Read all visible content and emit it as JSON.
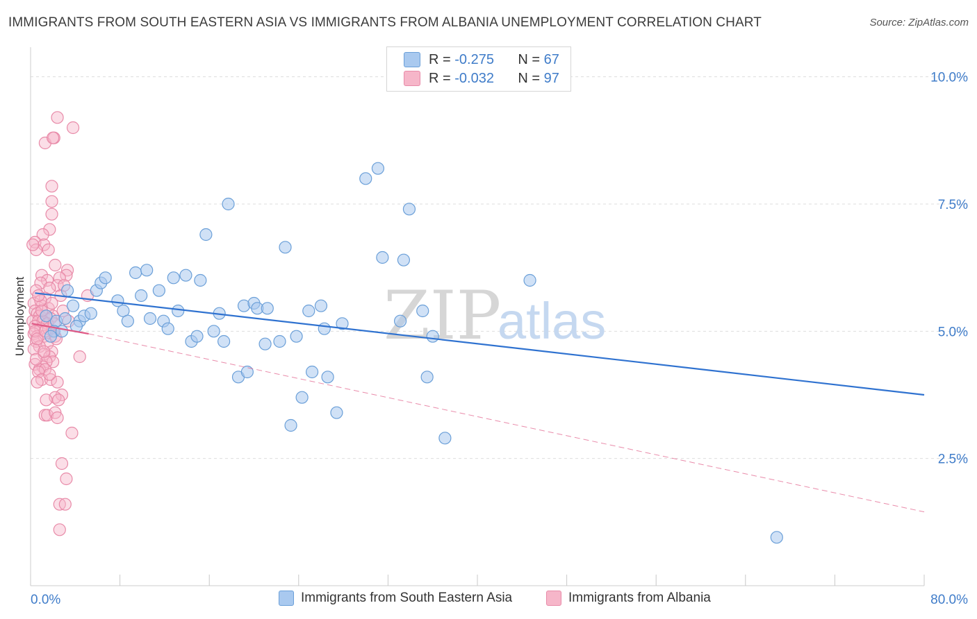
{
  "header": {
    "title": "IMMIGRANTS FROM SOUTH EASTERN ASIA VS IMMIGRANTS FROM ALBANIA UNEMPLOYMENT CORRELATION CHART",
    "source": "Source: ZipAtlas.com"
  },
  "legend": {
    "series1": {
      "r_label": "R =",
      "r_value": "-0.275",
      "n_label": "N =",
      "n_value": "67"
    },
    "series2": {
      "r_label": "R =",
      "r_value": "-0.032",
      "n_label": "N =",
      "n_value": "97"
    }
  },
  "watermark": {
    "zip": "ZIP",
    "atlas": "atlas"
  },
  "colors": {
    "blue_fill": "#a9c9ef",
    "blue_stroke": "#6a9fd8",
    "blue_line": "#2f72d0",
    "pink_fill": "#f6b6c9",
    "pink_stroke": "#e88aa8",
    "pink_line": "#e05a86",
    "axis_label": "#3f7cc9",
    "grid": "#dddddd"
  },
  "chart_data": {
    "type": "scatter",
    "title": "IMMIGRANTS FROM SOUTH EASTERN ASIA VS IMMIGRANTS FROM ALBANIA UNEMPLOYMENT CORRELATION CHART",
    "xlabel": "",
    "ylabel": "Unemployment",
    "xlim": [
      0,
      80
    ],
    "ylim": [
      0,
      10.5
    ],
    "x_tick_labels": [
      "0.0%",
      "80.0%"
    ],
    "y_ticks": [
      2.5,
      5.0,
      7.5,
      10.0
    ],
    "y_tick_labels": [
      "2.5%",
      "5.0%",
      "7.5%",
      "10.0%"
    ],
    "grid": true,
    "series": [
      {
        "name": "Immigrants from South Eastern Asia",
        "color": "#a9c9ef",
        "r": -0.275,
        "n": 67,
        "trend": {
          "x0": 0.4,
          "y0": 5.75,
          "x1": 80,
          "y1": 3.75
        },
        "points": [
          [
            2.3,
            5.2
          ],
          [
            3.3,
            5.8
          ],
          [
            2.1,
            5.0
          ],
          [
            1.8,
            4.9
          ],
          [
            3.8,
            5.5
          ],
          [
            4.4,
            5.2
          ],
          [
            4.8,
            5.3
          ],
          [
            5.4,
            5.35
          ],
          [
            5.9,
            5.8
          ],
          [
            6.3,
            5.95
          ],
          [
            6.7,
            6.05
          ],
          [
            7.8,
            5.6
          ],
          [
            8.3,
            5.4
          ],
          [
            8.7,
            5.2
          ],
          [
            9.4,
            6.15
          ],
          [
            9.9,
            5.7
          ],
          [
            10.4,
            6.2
          ],
          [
            10.7,
            5.25
          ],
          [
            11.5,
            5.8
          ],
          [
            11.9,
            5.2
          ],
          [
            12.3,
            5.05
          ],
          [
            12.8,
            6.05
          ],
          [
            13.2,
            5.4
          ],
          [
            13.9,
            6.1
          ],
          [
            14.4,
            4.8
          ],
          [
            14.9,
            4.9
          ],
          [
            15.2,
            6.0
          ],
          [
            15.7,
            6.9
          ],
          [
            16.4,
            5.0
          ],
          [
            16.9,
            5.35
          ],
          [
            17.3,
            4.8
          ],
          [
            17.7,
            7.5
          ],
          [
            18.6,
            4.1
          ],
          [
            19.1,
            5.5
          ],
          [
            19.4,
            4.2
          ],
          [
            20.0,
            5.55
          ],
          [
            20.3,
            5.45
          ],
          [
            21.0,
            4.75
          ],
          [
            21.2,
            5.45
          ],
          [
            22.3,
            4.8
          ],
          [
            22.8,
            6.65
          ],
          [
            23.3,
            3.15
          ],
          [
            23.8,
            4.9
          ],
          [
            24.3,
            3.7
          ],
          [
            24.9,
            5.4
          ],
          [
            25.2,
            4.2
          ],
          [
            26.0,
            5.5
          ],
          [
            26.3,
            5.05
          ],
          [
            26.6,
            4.1
          ],
          [
            27.4,
            3.4
          ],
          [
            27.9,
            5.15
          ],
          [
            30.0,
            8.0
          ],
          [
            31.1,
            8.2
          ],
          [
            31.5,
            6.45
          ],
          [
            33.1,
            5.2
          ],
          [
            33.4,
            6.4
          ],
          [
            33.9,
            7.4
          ],
          [
            35.1,
            5.4
          ],
          [
            35.5,
            4.1
          ],
          [
            36.0,
            4.9
          ],
          [
            37.1,
            2.9
          ],
          [
            44.7,
            6.0
          ],
          [
            66.8,
            0.95
          ],
          [
            1.4,
            5.3
          ],
          [
            2.8,
            5.0
          ],
          [
            4.1,
            5.1
          ],
          [
            3.1,
            5.25
          ]
        ]
      },
      {
        "name": "Immigrants from Albania",
        "color": "#f6b6c9",
        "r": -0.032,
        "n": 97,
        "trend_solid": {
          "x0": 0.1,
          "y0": 5.15,
          "x1": 5.2,
          "y1": 4.95
        },
        "trend_dashed": {
          "x0": 5.2,
          "y0": 4.95,
          "x1": 80,
          "y1": 1.45
        },
        "points": [
          [
            2.4,
            9.2
          ],
          [
            3.8,
            9.0
          ],
          [
            1.3,
            8.7
          ],
          [
            2.1,
            8.8
          ],
          [
            2.0,
            8.8
          ],
          [
            1.9,
            7.85
          ],
          [
            1.9,
            7.55
          ],
          [
            1.9,
            7.3
          ],
          [
            1.7,
            7.0
          ],
          [
            1.1,
            6.9
          ],
          [
            0.4,
            6.75
          ],
          [
            1.2,
            6.7
          ],
          [
            0.5,
            6.6
          ],
          [
            1.6,
            6.6
          ],
          [
            2.2,
            6.3
          ],
          [
            3.3,
            6.2
          ],
          [
            1.0,
            6.1
          ],
          [
            3.2,
            6.1
          ],
          [
            2.6,
            6.05
          ],
          [
            1.5,
            6.0
          ],
          [
            0.9,
            5.95
          ],
          [
            2.4,
            5.9
          ],
          [
            1.7,
            5.85
          ],
          [
            0.5,
            5.8
          ],
          [
            2.7,
            5.7
          ],
          [
            5.1,
            5.7
          ],
          [
            1.3,
            5.65
          ],
          [
            0.3,
            5.55
          ],
          [
            1.0,
            5.5
          ],
          [
            0.4,
            5.4
          ],
          [
            1.6,
            5.45
          ],
          [
            2.0,
            5.3
          ],
          [
            0.6,
            5.35
          ],
          [
            0.8,
            5.3
          ],
          [
            1.4,
            5.3
          ],
          [
            1.8,
            5.25
          ],
          [
            0.2,
            5.2
          ],
          [
            0.7,
            5.2
          ],
          [
            1.1,
            5.2
          ],
          [
            3.4,
            5.2
          ],
          [
            1.5,
            5.15
          ],
          [
            0.4,
            5.1
          ],
          [
            0.9,
            5.05
          ],
          [
            2.0,
            5.0
          ],
          [
            0.3,
            4.95
          ],
          [
            0.6,
            4.9
          ],
          [
            1.2,
            4.9
          ],
          [
            2.2,
            4.9
          ],
          [
            0.5,
            4.8
          ],
          [
            1.5,
            4.75
          ],
          [
            0.8,
            4.7
          ],
          [
            0.3,
            4.65
          ],
          [
            1.9,
            4.6
          ],
          [
            1.2,
            4.55
          ],
          [
            1.7,
            4.5
          ],
          [
            4.4,
            4.5
          ],
          [
            2.0,
            4.4
          ],
          [
            1.4,
            4.4
          ],
          [
            0.4,
            4.35
          ],
          [
            1.1,
            4.3
          ],
          [
            0.8,
            4.25
          ],
          [
            1.3,
            4.25
          ],
          [
            0.7,
            4.2
          ],
          [
            1.0,
            4.05
          ],
          [
            1.8,
            4.05
          ],
          [
            0.6,
            4.0
          ],
          [
            2.4,
            4.0
          ],
          [
            2.8,
            3.75
          ],
          [
            2.2,
            3.7
          ],
          [
            1.4,
            3.65
          ],
          [
            2.5,
            3.65
          ],
          [
            1.3,
            3.35
          ],
          [
            1.5,
            3.35
          ],
          [
            2.2,
            3.4
          ],
          [
            2.4,
            3.3
          ],
          [
            3.7,
            3.0
          ],
          [
            2.8,
            2.4
          ],
          [
            3.2,
            2.1
          ],
          [
            2.6,
            1.6
          ],
          [
            3.1,
            1.6
          ],
          [
            2.6,
            1.1
          ],
          [
            0.2,
            6.7
          ],
          [
            0.9,
            5.6
          ],
          [
            1.6,
            5.05
          ],
          [
            2.9,
            5.4
          ],
          [
            0.5,
            4.45
          ],
          [
            1.9,
            5.55
          ],
          [
            0.7,
            5.7
          ],
          [
            3.0,
            5.9
          ],
          [
            1.2,
            4.6
          ],
          [
            0.4,
            5.0
          ],
          [
            2.3,
            4.85
          ],
          [
            1.0,
            5.4
          ],
          [
            1.7,
            4.15
          ],
          [
            0.6,
            4.85
          ],
          [
            2.1,
            5.15
          ],
          [
            1.3,
            5.0
          ]
        ]
      }
    ]
  },
  "bottom_legend": {
    "item1": "Immigrants from South Eastern Asia",
    "item2": "Immigrants from Albania"
  }
}
